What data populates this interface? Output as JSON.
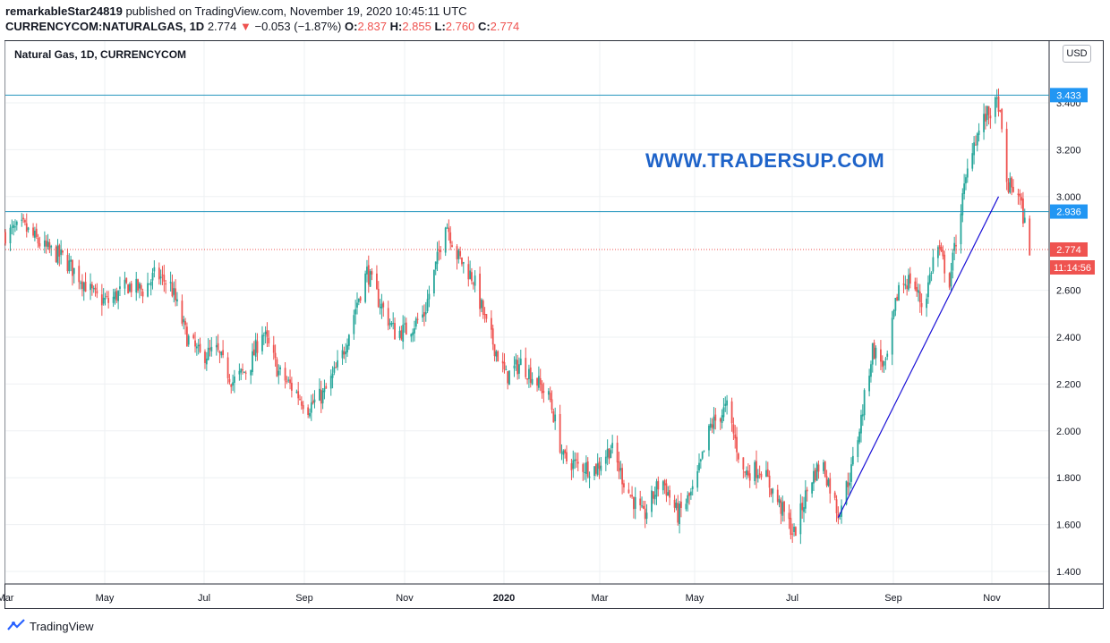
{
  "header": {
    "publisher": "remarkableStar24819",
    "published_text": " published on TradingView.com, November 19, 2020 10:45:11 UTC",
    "symbol_line": "CURRENCYCOM:NATURALGAS, 1D",
    "last": "2.774",
    "change_arrow": "▼",
    "change": "−0.053 (−1.87%)",
    "o_label": "O:",
    "o_val": "2.837",
    "h_label": "H:",
    "h_val": "2.855",
    "l_label": "L:",
    "l_val": "2.760",
    "c_label": "C:",
    "c_val": "2.774"
  },
  "chart_title": "Natural Gas, 1D, CURRENCYCOM",
  "watermark": "WWW.TRADERSUP.COM",
  "currency_button": "USD",
  "footer": {
    "brand": "TradingView"
  },
  "colors": {
    "up": "#26a69a",
    "down": "#ef5350",
    "hline": "#2596be",
    "trend": "#1a10d6",
    "price_badge": "#ef5350",
    "level_badge": "#2196f3"
  },
  "chart_data": {
    "type": "candlestick",
    "title": "Natural Gas, 1D, CURRENCYCOM",
    "ylim": [
      1.3,
      3.6
    ],
    "y_ticks": [
      "1.400",
      "1.600",
      "1.800",
      "2.000",
      "2.200",
      "2.400",
      "2.600",
      "3.000",
      "3.200",
      "3.400"
    ],
    "x_ticks": [
      "Mar",
      "May",
      "Jul",
      "Sep",
      "Nov",
      "2020",
      "Mar",
      "May",
      "Jul",
      "Sep",
      "Nov"
    ],
    "grid": true,
    "horizontal_lines": [
      {
        "value": 3.433,
        "label": "3.433"
      },
      {
        "value": 2.936,
        "label": "2.936"
      }
    ],
    "last_price": {
      "value": 2.774,
      "label": "2.774",
      "countdown": "11:14:56"
    },
    "trendline": {
      "from": {
        "date": "2020-07-22",
        "price": 1.63
      },
      "to": {
        "date": "2020-10-28",
        "price": 3.0
      }
    },
    "close_path": [
      [
        "2019-03-01",
        2.84
      ],
      [
        "2019-03-12",
        2.87
      ],
      [
        "2019-03-25",
        2.78
      ],
      [
        "2019-04-05",
        2.74
      ],
      [
        "2019-04-15",
        2.66
      ],
      [
        "2019-04-25",
        2.57
      ],
      [
        "2019-05-03",
        2.55
      ],
      [
        "2019-05-15",
        2.62
      ],
      [
        "2019-05-24",
        2.6
      ],
      [
        "2019-06-01",
        2.67
      ],
      [
        "2019-06-10",
        2.62
      ],
      [
        "2019-06-20",
        2.4
      ],
      [
        "2019-06-28",
        2.32
      ],
      [
        "2019-07-08",
        2.34
      ],
      [
        "2019-07-18",
        2.21
      ],
      [
        "2019-07-28",
        2.27
      ],
      [
        "2019-08-05",
        2.43
      ],
      [
        "2019-08-15",
        2.25
      ],
      [
        "2019-08-25",
        2.17
      ],
      [
        "2019-09-02",
        2.1
      ],
      [
        "2019-09-12",
        2.16
      ],
      [
        "2019-09-22",
        2.3
      ],
      [
        "2019-10-02",
        2.55
      ],
      [
        "2019-10-08",
        2.68
      ],
      [
        "2019-10-15",
        2.56
      ],
      [
        "2019-10-25",
        2.42
      ],
      [
        "2019-11-02",
        2.43
      ],
      [
        "2019-11-12",
        2.5
      ],
      [
        "2019-11-20",
        2.73
      ],
      [
        "2019-11-25",
        2.9
      ],
      [
        "2019-12-02",
        2.75
      ],
      [
        "2019-12-12",
        2.65
      ],
      [
        "2019-12-20",
        2.45
      ],
      [
        "2020-01-01",
        2.23
      ],
      [
        "2020-01-10",
        2.29
      ],
      [
        "2020-01-20",
        2.21
      ],
      [
        "2020-01-28",
        2.13
      ],
      [
        "2020-02-05",
        1.88
      ],
      [
        "2020-02-15",
        1.85
      ],
      [
        "2020-02-25",
        1.84
      ],
      [
        "2020-03-05",
        1.93
      ],
      [
        "2020-03-15",
        1.75
      ],
      [
        "2020-03-25",
        1.63
      ],
      [
        "2020-04-05",
        1.8
      ],
      [
        "2020-04-15",
        1.64
      ],
      [
        "2020-04-25",
        1.75
      ],
      [
        "2020-05-05",
        2.02
      ],
      [
        "2020-05-15",
        2.1
      ],
      [
        "2020-05-25",
        1.82
      ],
      [
        "2020-06-05",
        1.84
      ],
      [
        "2020-06-15",
        1.7
      ],
      [
        "2020-06-25",
        1.56
      ],
      [
        "2020-07-05",
        1.79
      ],
      [
        "2020-07-12",
        1.87
      ],
      [
        "2020-07-22",
        1.65
      ],
      [
        "2020-07-30",
        1.83
      ],
      [
        "2020-08-05",
        2.05
      ],
      [
        "2020-08-12",
        2.35
      ],
      [
        "2020-08-20",
        2.27
      ],
      [
        "2020-08-28",
        2.62
      ],
      [
        "2020-09-05",
        2.65
      ],
      [
        "2020-09-12",
        2.52
      ],
      [
        "2020-09-20",
        2.8
      ],
      [
        "2020-09-28",
        2.64
      ],
      [
        "2020-10-05",
        2.95
      ],
      [
        "2020-10-12",
        3.22
      ],
      [
        "2020-10-20",
        3.34
      ],
      [
        "2020-10-28",
        3.4
      ],
      [
        "2020-11-02",
        3.05
      ],
      [
        "2020-11-09",
        3.02
      ],
      [
        "2020-11-16",
        2.78
      ],
      [
        "2020-11-19",
        2.774
      ]
    ]
  }
}
